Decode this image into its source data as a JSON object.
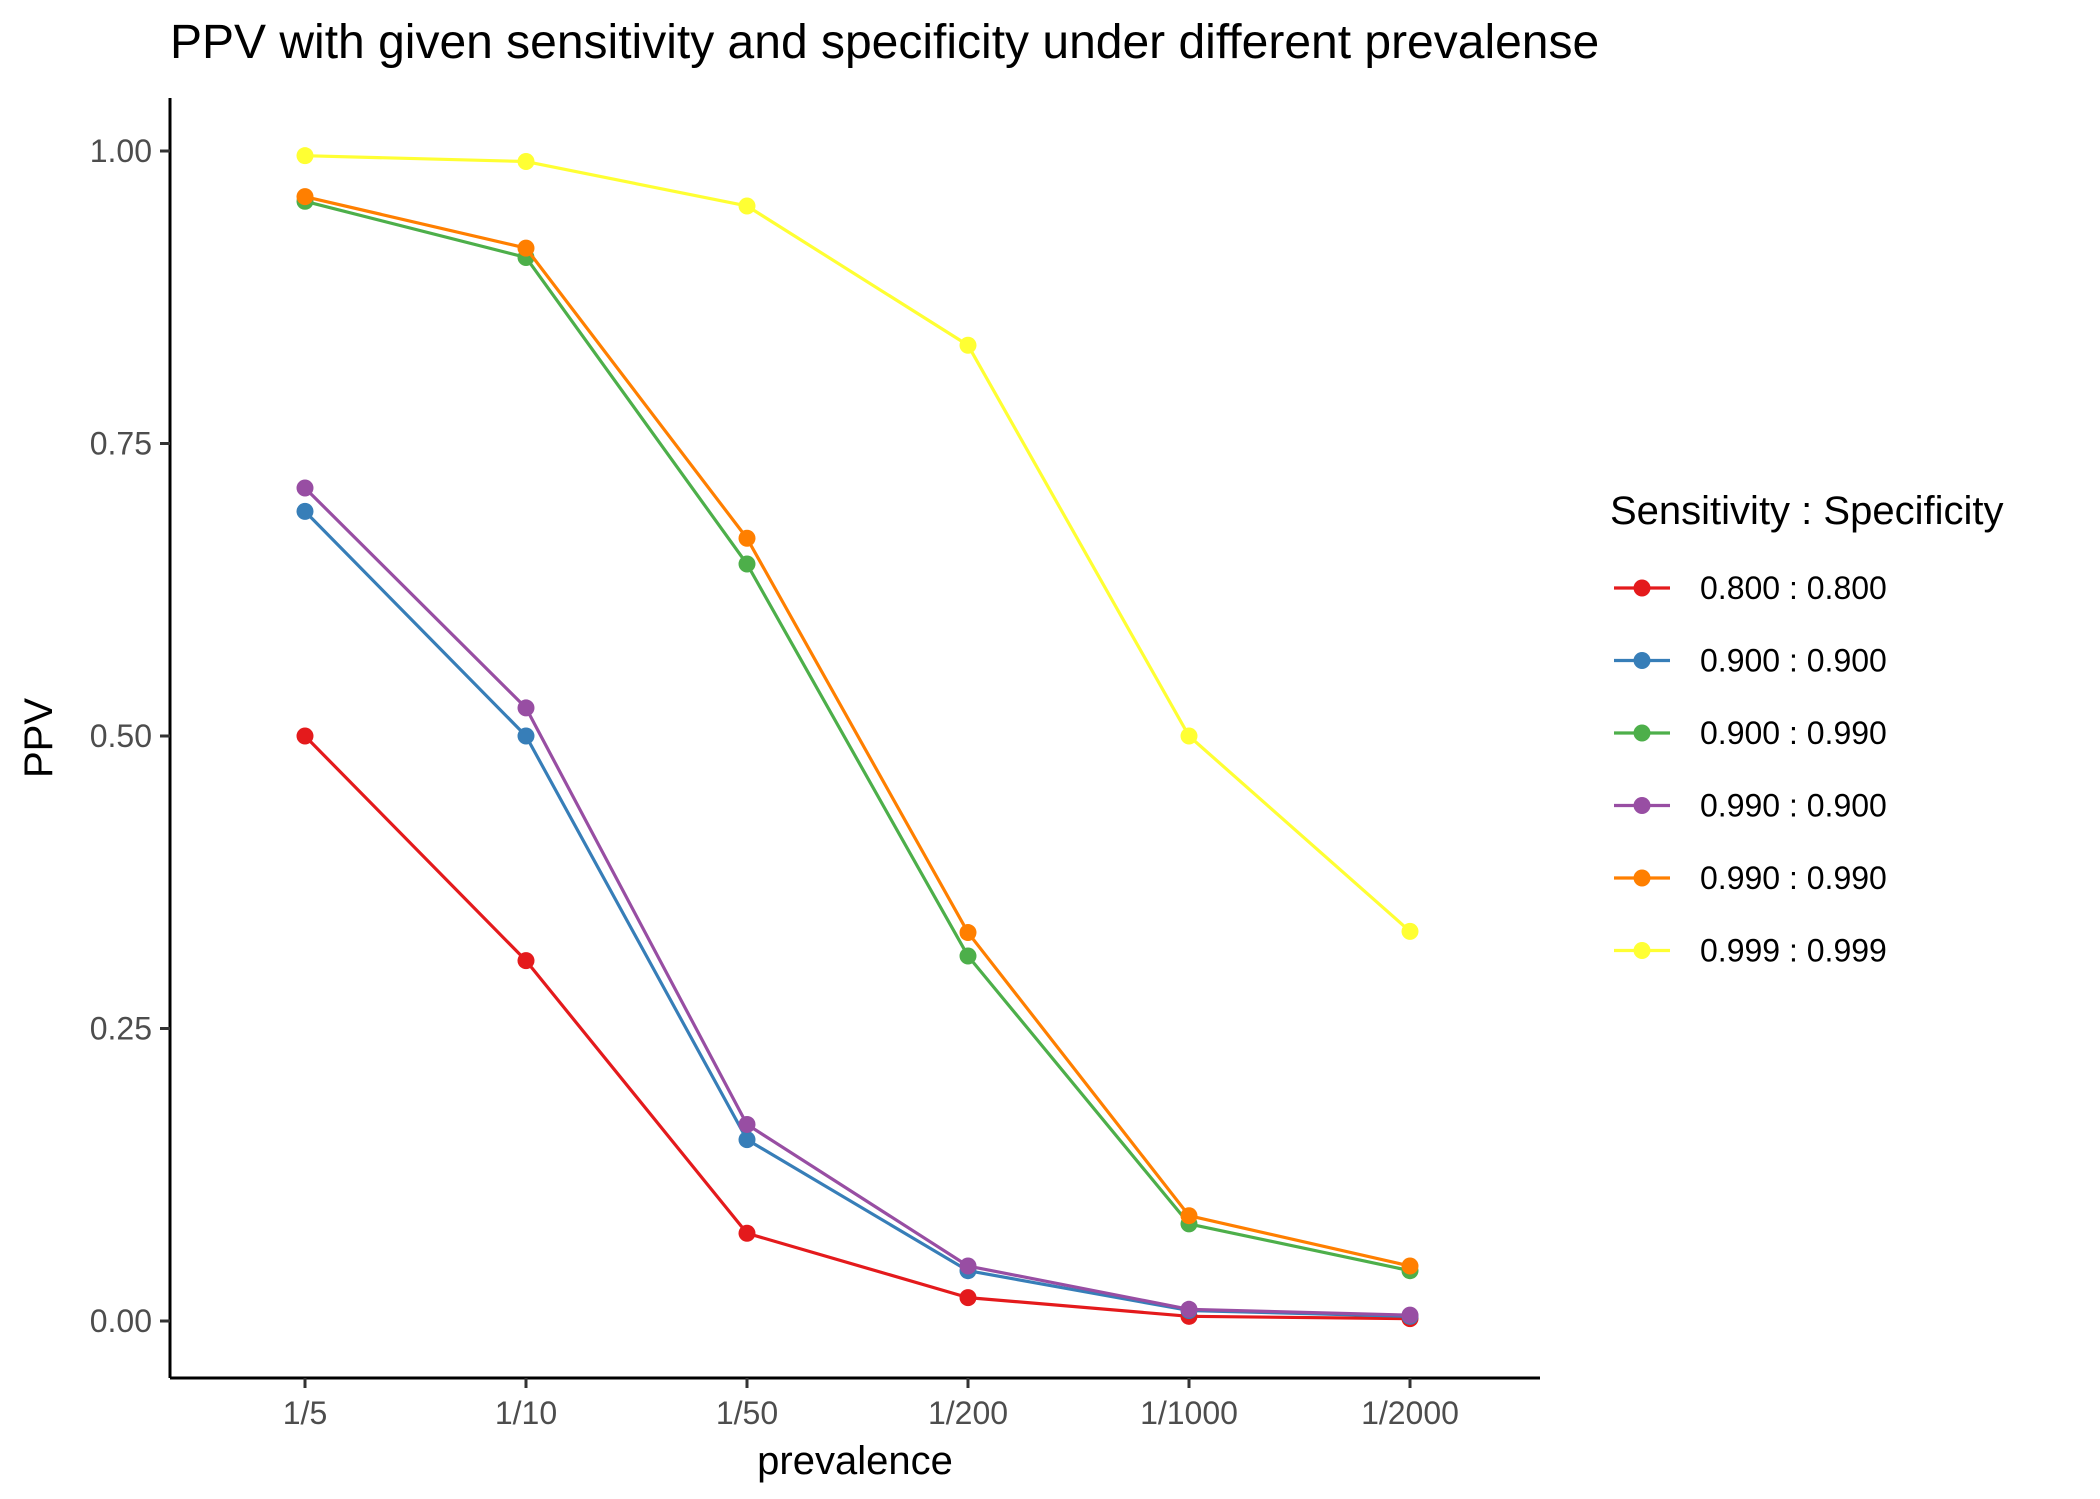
{
  "chart_data": {
    "type": "line",
    "title": "PPV with given sensitivity and specificity under different prevalense",
    "xlabel": "prevalence",
    "ylabel": "PPV",
    "categories": [
      "1/5",
      "1/10",
      "1/50",
      "1/200",
      "1/1000",
      "1/2000"
    ],
    "ylim": [
      -0.05,
      1.04
    ],
    "yticks": [
      0.0,
      0.25,
      0.5,
      0.75,
      1.0
    ],
    "ytick_labels": [
      "0.00",
      "0.25",
      "0.50",
      "0.75",
      "1.00"
    ],
    "grid": false,
    "legend": {
      "title": "Sensitivity : Specificity",
      "position": "right"
    },
    "series": [
      {
        "name": "0.800 : 0.800",
        "color": "#e41a1c",
        "values": [
          0.5,
          0.308,
          0.075,
          0.02,
          0.004,
          0.002
        ]
      },
      {
        "name": "0.900 : 0.900",
        "color": "#377eb8",
        "values": [
          0.692,
          0.5,
          0.155,
          0.043,
          0.009,
          0.004
        ]
      },
      {
        "name": "0.900 : 0.990",
        "color": "#4daf4a",
        "values": [
          0.957,
          0.909,
          0.647,
          0.312,
          0.083,
          0.043
        ]
      },
      {
        "name": "0.990 : 0.900",
        "color": "#984ea3",
        "values": [
          0.712,
          0.524,
          0.168,
          0.047,
          0.01,
          0.005
        ]
      },
      {
        "name": "0.990 : 0.990",
        "color": "#ff7f00",
        "values": [
          0.961,
          0.917,
          0.669,
          0.332,
          0.09,
          0.047
        ]
      },
      {
        "name": "0.999 : 0.999",
        "color": "#ffff33",
        "values": [
          0.996,
          0.991,
          0.953,
          0.834,
          0.5,
          0.333
        ]
      }
    ]
  }
}
